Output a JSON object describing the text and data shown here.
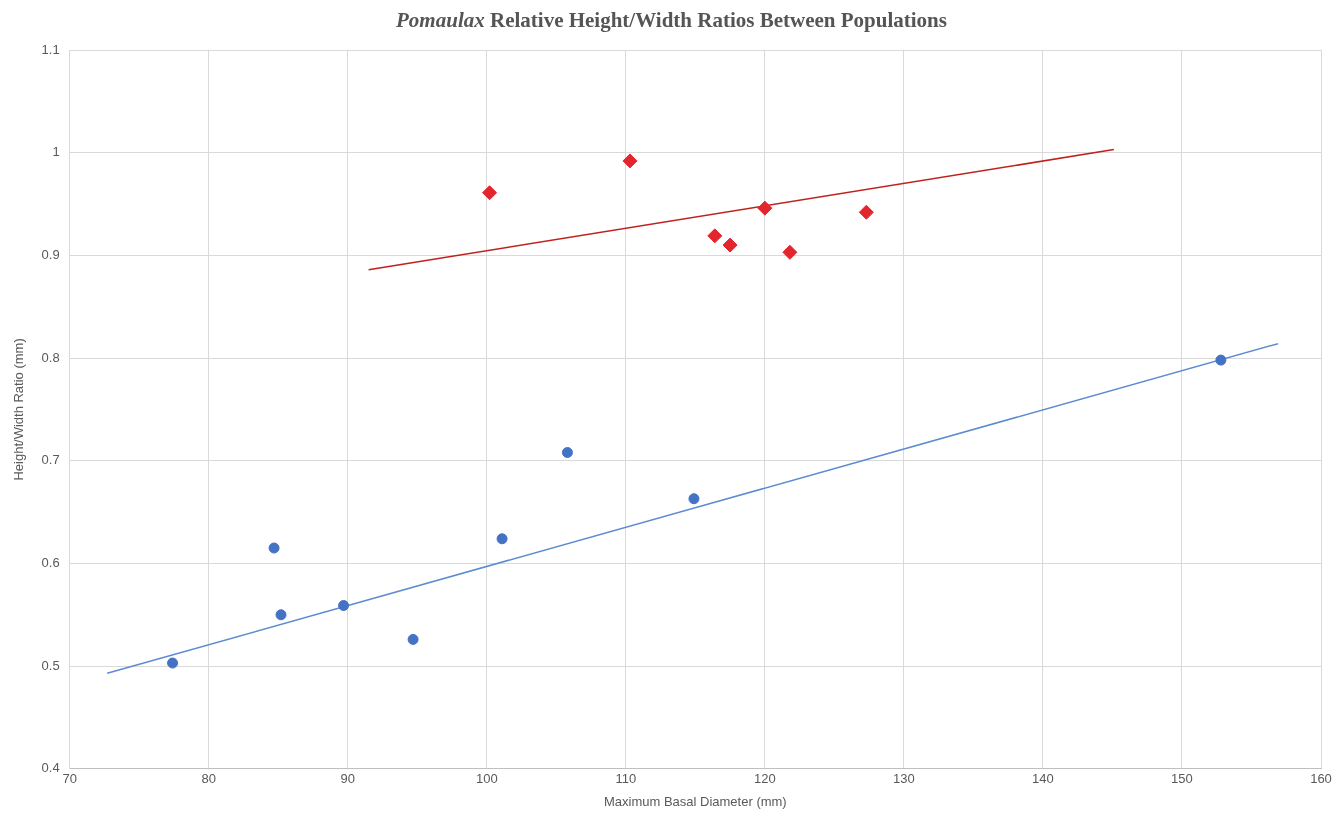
{
  "chart_data": {
    "type": "scatter",
    "title": "Pomaulax Relative Height/Width Ratios Between Populations",
    "xlabel": "Maximum Basal Diameter (mm)",
    "ylabel": "Height/Width Ratio (mm)",
    "xlim": [
      70,
      160
    ],
    "xticks": [
      70,
      80,
      90,
      100,
      110,
      120,
      130,
      140,
      150,
      160
    ],
    "ylim": [
      0.4,
      1.1
    ],
    "yticks": [
      0.4,
      0.5,
      0.6,
      0.7,
      0.8,
      0.9,
      1,
      1.1
    ],
    "grid": true,
    "legend": false,
    "series": [
      {
        "color": "#4472c4",
        "marker": "circle",
        "x": [
          77.4,
          84.7,
          85.2,
          89.7,
          94.7,
          101.1,
          105.8,
          114.9,
          152.8
        ],
        "values": [
          0.503,
          0.615,
          0.55,
          0.559,
          0.526,
          0.624,
          0.708,
          0.663,
          0.798
        ]
      },
      {
        "color": "#e3262d",
        "marker": "diamond",
        "x": [
          100.2,
          110.3,
          116.4,
          117.5,
          120.0,
          121.8,
          127.3
        ],
        "values": [
          0.961,
          0.992,
          0.919,
          0.91,
          0.946,
          0.903,
          0.942
        ]
      },
      {
        "type": "line",
        "color": "#5b8bd0",
        "marker": "none",
        "line_style": "solid",
        "x": [
          72.7,
          156.9
        ],
        "values": [
          0.493,
          0.814
        ]
      },
      {
        "type": "line",
        "color": "#c0211c",
        "marker": "none",
        "line_style": "solid",
        "x": [
          91.5,
          145.1
        ],
        "values": [
          0.886,
          1.003
        ]
      }
    ]
  }
}
